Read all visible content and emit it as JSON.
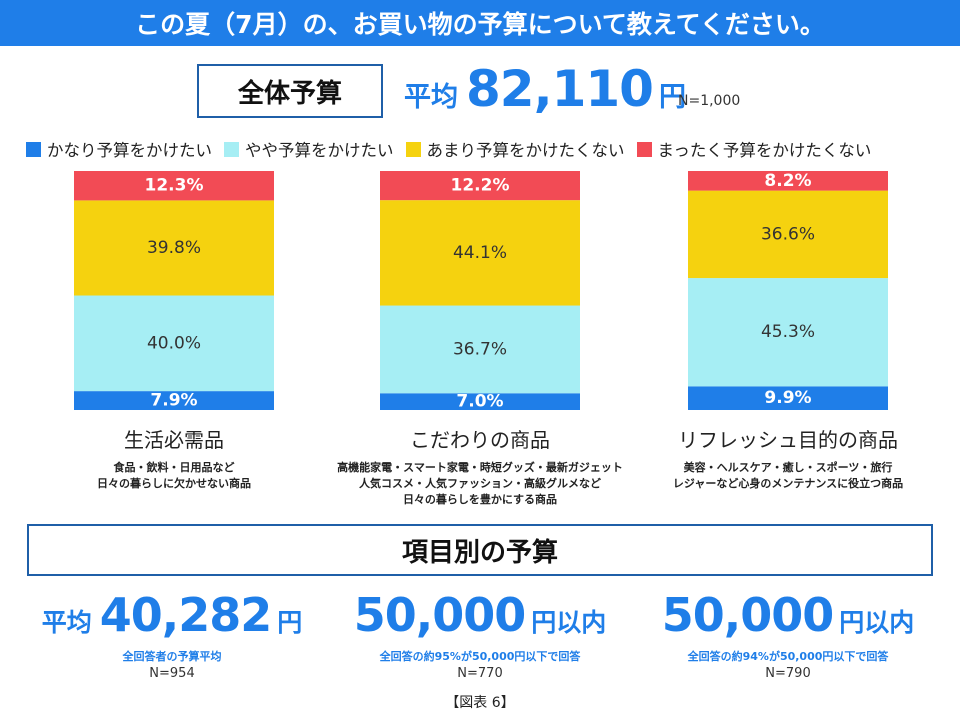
{
  "title": "この夏（7月）の、お買い物の予算について教えてください。",
  "overall": {
    "box_label": "全体予算",
    "avg_prefix": "平均",
    "avg_value": "82,110",
    "avg_unit": "円",
    "n": "N=1,000"
  },
  "legend": [
    {
      "label": "かなり予算をかけたい",
      "color": "#1f7ee8"
    },
    {
      "label": "やや予算をかけたい",
      "color": "#a6eef4"
    },
    {
      "label": "あまり予算をかけたくない",
      "color": "#f5d20f"
    },
    {
      "label": "まったく予算をかけたくない",
      "color": "#f24b55"
    }
  ],
  "chart_data": {
    "type": "bar",
    "stacked": true,
    "percent": true,
    "categories": [
      "生活必需品",
      "こだわりの商品",
      "リフレッシュ目的の商品"
    ],
    "series": [
      {
        "name": "かなり予算をかけたい",
        "values": [
          7.9,
          7.0,
          9.9
        ],
        "labels": [
          "7.9%",
          "7.0%",
          "9.9%"
        ],
        "color": "#1f7ee8",
        "label_color": "#ffffff"
      },
      {
        "name": "やや予算をかけたい",
        "values": [
          40.0,
          36.7,
          45.3
        ],
        "labels": [
          "40.0%",
          "36.7%",
          "45.3%"
        ],
        "color": "#a6eef4",
        "label_color": "#333333"
      },
      {
        "name": "あまり予算をかけたくない",
        "values": [
          39.8,
          44.1,
          36.6
        ],
        "labels": [
          "39.8%",
          "44.1%",
          "36.6%"
        ],
        "color": "#f5d20f",
        "label_color": "#333333"
      },
      {
        "name": "まったく予算をかけたくない",
        "values": [
          12.3,
          12.2,
          8.2
        ],
        "labels": [
          "12.3%",
          "12.2%",
          "8.2%"
        ],
        "color": "#f24b55",
        "label_color": "#ffffff"
      }
    ],
    "ylim": [
      0,
      100
    ],
    "grid": false,
    "legend_position": "top"
  },
  "categories": [
    {
      "title": "生活必需品",
      "desc": [
        "食品・飲料・日用品など",
        "日々の暮らしに欠かせない商品"
      ]
    },
    {
      "title": "こだわりの商品",
      "desc": [
        "高機能家電・スマート家電・時短グッズ・最新ガジェット",
        "人気コスメ・人気ファッション・高級グルメなど",
        "日々の暮らしを豊かにする商品"
      ]
    },
    {
      "title": "リフレッシュ目的の商品",
      "desc": [
        "美容・ヘルスケア・癒し・スポーツ・旅行",
        "レジャーなど心身のメンテナンスに役立つ商品"
      ]
    }
  ],
  "section_title": "項目別の予算",
  "budgets": [
    {
      "prefix": "平均",
      "value": "40,282",
      "suffix": "円",
      "note": "全回答者の予算平均",
      "n": "N=954"
    },
    {
      "prefix": "",
      "value": "50,000",
      "suffix": "円以内",
      "note": "全回答の約95%が50,000円以下で回答",
      "n": "N=770"
    },
    {
      "prefix": "",
      "value": "50,000",
      "suffix": "円以内",
      "note": "全回答の約94%が50,000円以下で回答",
      "n": "N=790"
    }
  ],
  "figure_label": "【図表 6】"
}
